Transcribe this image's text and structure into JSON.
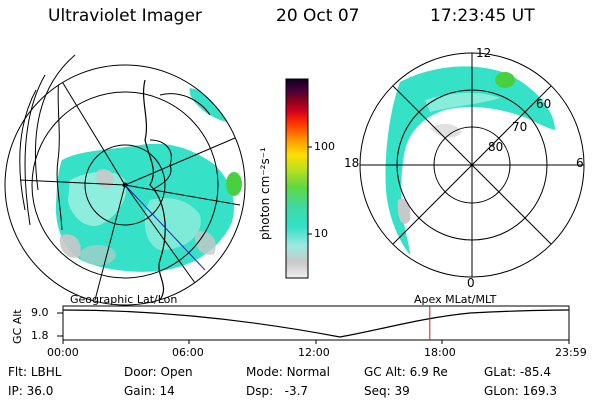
{
  "header": {
    "title": "Ultraviolet Imager",
    "date": "20 Oct 07",
    "time": "17:23:45 UT"
  },
  "colorbar": {
    "unit_label": "photon cm⁻²s⁻¹",
    "ticks": [
      "100",
      "10"
    ]
  },
  "polar_plot": {
    "lat_labels": [
      "60",
      "70",
      "80"
    ],
    "mlt_labels": [
      "12",
      "18",
      "6",
      "0"
    ]
  },
  "track": {
    "left_label": "Geographic Lat/Lon",
    "right_label": "Apex MLat/MLT",
    "y_axis_label": "GC Alt",
    "y_ticks": [
      "9.0",
      "1.8"
    ],
    "x_ticks": [
      "00:00",
      "06:00",
      "12:00",
      "18:00",
      "23:59"
    ],
    "current_marker_time": "17:23",
    "altitude_min_time": "13:40"
  },
  "info": {
    "flt_label": "Flt:",
    "flt_value": "LBHL",
    "ip_label": "IP:",
    "ip_value": "36.0",
    "door_label": "Door:",
    "door_value": "Open",
    "gain_label": "Gain:",
    "gain_value": "14",
    "mode_label": "Mode:",
    "mode_value": "Normal",
    "dsp_label": "Dsp:",
    "dsp_value": "-3.7",
    "gcalt_label": "GC Alt:",
    "gcalt_value": "6.9 Re",
    "seq_label": "Seq:",
    "seq_value": "39",
    "glat_label": "GLat:",
    "glat_value": "-85.4",
    "glon_label": "GLon:",
    "glon_value": "169.3"
  },
  "colors": {
    "aurora_main": "#35e2c8",
    "aurora_light": "#9ef0e0",
    "gray_noise": "#c8c8c8",
    "green": "#48d040",
    "marker": "#c02020",
    "track_line": "#2020c0"
  }
}
